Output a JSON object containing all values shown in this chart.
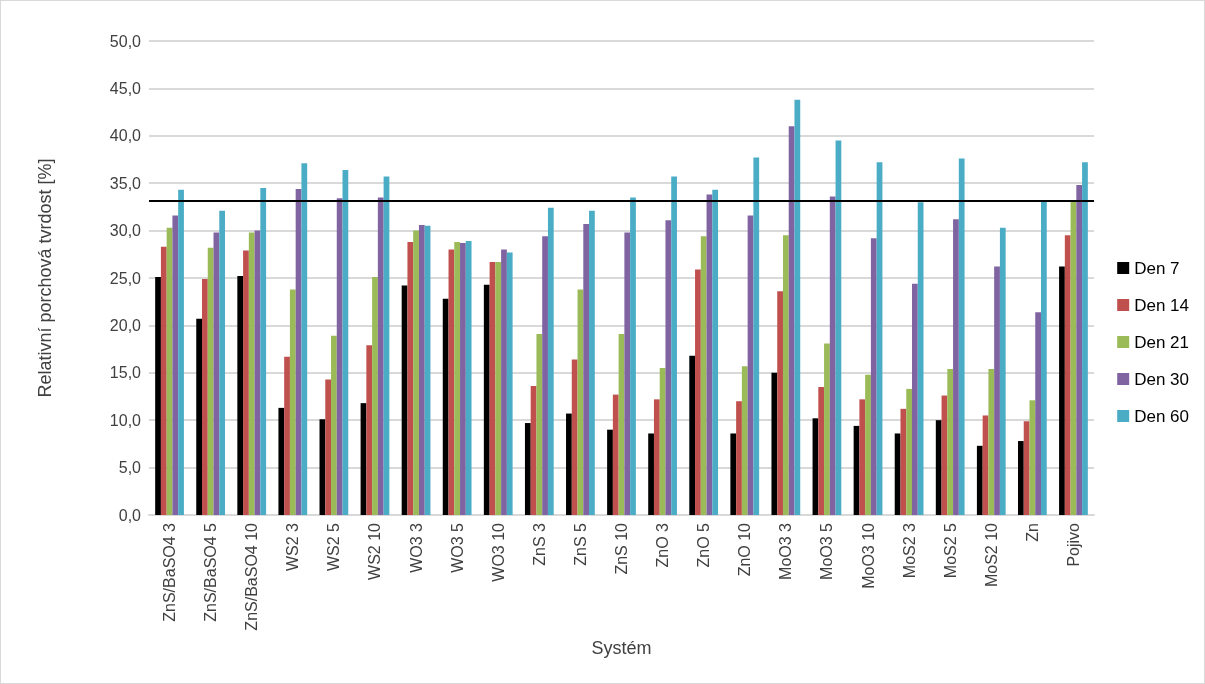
{
  "chart_data": {
    "type": "bar",
    "xlabel": "Systém",
    "ylabel": "Relativní porchová tvrdost [%]",
    "categories": [
      "ZnS/BaSO4 3",
      "ZnS/BaSO4 5",
      "ZnS/BaSO4 10",
      "WS2 3",
      "WS2 5",
      "WS2 10",
      "WO3 3",
      "WO3 5",
      "WO3 10",
      "ZnS 3",
      "ZnS 5",
      "ZnS 10",
      "ZnO 3",
      "ZnO 5",
      "ZnO 10",
      "MoO3 3",
      "MoO3 5",
      "MoO3 10",
      "MoS2 3",
      "MoS2 5",
      "MoS2 10",
      "Zn",
      "Pojivo"
    ],
    "series": [
      {
        "name": "Den 7",
        "color": "#000000",
        "values": [
          25.1,
          20.7,
          25.2,
          11.3,
          10.1,
          11.8,
          24.2,
          22.8,
          24.3,
          9.7,
          10.7,
          9.0,
          8.6,
          16.8,
          8.6,
          15.0,
          10.2,
          9.4,
          8.6,
          10.0,
          7.3,
          7.8,
          26.2
        ]
      },
      {
        "name": "Den 14",
        "color": "#c0504d",
        "values": [
          28.3,
          24.9,
          27.9,
          16.7,
          14.3,
          17.9,
          28.8,
          28.0,
          26.7,
          13.6,
          16.4,
          12.7,
          12.2,
          25.9,
          12.0,
          23.6,
          13.5,
          12.2,
          11.2,
          12.6,
          10.5,
          9.9,
          29.5
        ]
      },
      {
        "name": "Den 21",
        "color": "#9bbb59",
        "values": [
          30.3,
          28.2,
          29.8,
          23.8,
          18.9,
          25.1,
          30.0,
          28.8,
          26.7,
          19.1,
          23.8,
          19.1,
          15.5,
          29.4,
          15.7,
          29.5,
          18.1,
          14.8,
          13.3,
          15.4,
          15.4,
          12.1,
          33.2
        ]
      },
      {
        "name": "Den 30",
        "color": "#8064a2",
        "values": [
          31.6,
          29.8,
          30.0,
          34.4,
          33.4,
          33.5,
          30.6,
          28.7,
          28.0,
          29.4,
          30.7,
          29.8,
          31.1,
          33.8,
          31.6,
          41.0,
          33.6,
          29.2,
          24.4,
          31.2,
          26.2,
          21.4,
          34.8
        ]
      },
      {
        "name": "Den 60",
        "color": "#4bacc6",
        "values": [
          34.3,
          32.1,
          34.5,
          37.1,
          36.4,
          35.7,
          30.5,
          28.9,
          27.7,
          32.4,
          32.1,
          33.5,
          35.7,
          34.3,
          37.7,
          43.8,
          39.5,
          37.2,
          33.0,
          37.6,
          30.3,
          33.1,
          37.2
        ]
      }
    ],
    "ylim": [
      0,
      50
    ],
    "yticks": [
      {
        "value": 0,
        "label": "0,0"
      },
      {
        "value": 5,
        "label": "5,0"
      },
      {
        "value": 10,
        "label": "10,0"
      },
      {
        "value": 15,
        "label": "15,0"
      },
      {
        "value": 20,
        "label": "20,0"
      },
      {
        "value": 25,
        "label": "25,0"
      },
      {
        "value": 30,
        "label": "30,0"
      },
      {
        "value": 35,
        "label": "35,0"
      },
      {
        "value": 40,
        "label": "40,0"
      },
      {
        "value": 45,
        "label": "45,0"
      },
      {
        "value": 50,
        "label": "50,0"
      }
    ],
    "grid": "y",
    "legend": "right",
    "ref_lines": [
      {
        "axis": "y",
        "value": 33.2,
        "color": "#000000",
        "line_style": "solid"
      }
    ]
  }
}
